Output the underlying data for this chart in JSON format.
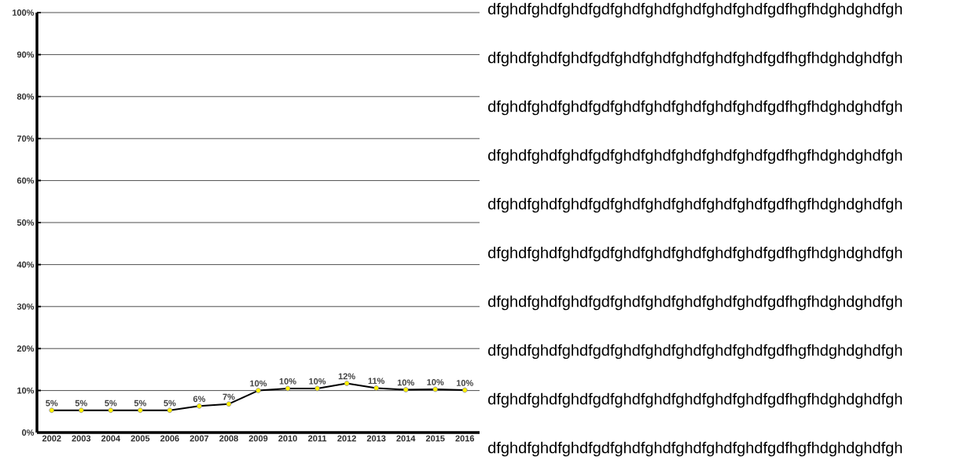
{
  "chart_data": {
    "type": "line",
    "categories": [
      "2002",
      "2003",
      "2004",
      "2005",
      "2006",
      "2007",
      "2008",
      "2009",
      "2010",
      "2011",
      "2012",
      "2013",
      "2014",
      "2015",
      "2016"
    ],
    "series": [
      {
        "color": "#000000",
        "values": [
          5.3,
          5.3,
          5.3,
          5.3,
          5.3,
          6.3,
          6.8,
          10,
          10.5,
          10.5,
          11.7,
          10.6,
          10.2,
          10.3,
          10.1
        ],
        "value_labels": [
          "5%",
          "5%",
          "5%",
          "5%",
          "5%",
          "6%",
          "7%",
          "10%",
          "10%",
          "10%",
          "12%",
          "11%",
          "10%",
          "10%",
          "10%"
        ]
      }
    ],
    "ylim": [
      0,
      100
    ],
    "yticks": [
      {
        "value": 0,
        "label": "0%"
      },
      {
        "value": 10,
        "label": "10%"
      },
      {
        "value": 20,
        "label": "20%"
      },
      {
        "value": 30,
        "label": "30%"
      },
      {
        "value": 40,
        "label": "40%"
      },
      {
        "value": 50,
        "label": "50%"
      },
      {
        "value": 60,
        "label": "60%"
      },
      {
        "value": 70,
        "label": "70%"
      },
      {
        "value": 80,
        "label": "80%"
      },
      {
        "value": 90,
        "label": "90%"
      },
      {
        "value": 100,
        "label": "100%"
      }
    ],
    "grid": "y",
    "marker": "circle",
    "line_style": "solid",
    "annotations": [
      "dfghdfghdfghdfgdfghdfghdfghdfghdfghdfgdfhgfhdghdghdfgh",
      "dfghdfghdfghdfgdfghdfghdfghdfghdfghdfgdfhgfhdghdghdfgh",
      "dfghdfghdfghdfgdfghdfghdfghdfghdfghdfgdfhgfhdghdghdfgh",
      "dfghdfghdfghdfgdfghdfghdfghdfghdfghdfgdfhgfhdghdghdfgh",
      "dfghdfghdfghdfgdfghdfghdfghdfghdfghdfgdfhgfhdghdghdfgh",
      "dfghdfghdfghdfgdfghdfghdfghdfghdfghdfgdfhgfhdghdghdfgh",
      "dfghdfghdfghdfgdfghdfghdfghdfghdfghdfgdfhgfhdghdghdfgh",
      "dfghdfghdfghdfgdfghdfghdfghdfghdfghdfgdfhgfhdghdghdfgh",
      "dfghdfghdfghdfgdfghdfghdfghdfghdfghdfgdfhgfhdghdghdfgh",
      "dfghdfghdfghdfgdfghdfghdfghdfghdfghdfgdfhgfhdghdghdfgh"
    ]
  }
}
